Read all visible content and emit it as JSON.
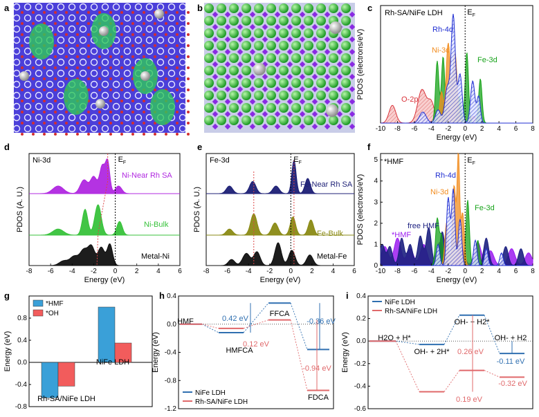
{
  "colors": {
    "rh4d": "#1f2ed1",
    "ni3d": "#f28c1e",
    "fe3d": "#17a31a",
    "o2p": "#d9333a",
    "hmf_purple": "#9b1cf0",
    "ni_near": "#b028e0",
    "ni_bulk": "#38c23b",
    "metal": "#111111",
    "fe_near": "#1c1f75",
    "fe_bulk": "#8a8a14",
    "blue_path": "#2f6fb0",
    "red_path": "#e0686a",
    "bar_blue": "#3aa0d8",
    "bar_red": "#f25c5c"
  },
  "panels": {
    "a": {
      "label": "a"
    },
    "b": {
      "label": "b"
    },
    "c": {
      "label": "c",
      "title": "Rh-SA/NiFe LDH",
      "ef": "E",
      "ef_sub": "F",
      "labels": {
        "rh4d": "Rh-4d",
        "ni3d": "Ni-3d",
        "fe3d": "Fe-3d",
        "o2p": "O-2p"
      },
      "ylabel": "PDOS (electrons/eV)",
      "xlabel": "Energy (eV)"
    },
    "d": {
      "label": "d",
      "title": "Ni-3d",
      "ef": "E",
      "ef_sub": "F",
      "labels": {
        "near": "Ni-Near Rh SA",
        "bulk": "Ni-Bulk",
        "metal": "Metal-Ni"
      },
      "ylabel": "PDOS (A. U.)",
      "xlabel": "Energy (eV)"
    },
    "e": {
      "label": "e",
      "title": "Fe-3d",
      "ef": "E",
      "ef_sub": "F",
      "labels": {
        "near": "Fe-Near Rh SA",
        "bulk": "Fe-Bulk",
        "metal": "Metal-Fe"
      },
      "ylabel": "PDOS (A. U.)",
      "xlabel": "Energy (eV)"
    },
    "f": {
      "label": "f",
      "title": "*HMF",
      "ef": "E",
      "ef_sub": "F",
      "labels": {
        "rh4d": "Rh-4d",
        "ni3d": "Ni-3d",
        "fe3d": "Fe-3d",
        "free": "free HMF",
        "hmf": "*HMF"
      },
      "ylabel": "PDOS (electrons/eV)",
      "xlabel": "Energy (eV)"
    },
    "g": {
      "label": "g"
    },
    "h": {
      "label": "h"
    },
    "i": {
      "label": "i"
    }
  },
  "chart_data": [
    {
      "panel": "c",
      "type": "area",
      "xlim": [
        -10,
        8
      ],
      "ylim": [
        0,
        5.3
      ],
      "xticks": [
        "-10",
        "-8",
        "-6",
        "-4",
        "-2",
        "0",
        "2",
        "4",
        "6",
        "8"
      ],
      "series": [
        {
          "name": "Rh-4d",
          "peaks": [
            [
              -2.1,
              1.6,
              0.3
            ],
            [
              -1.4,
              4.8,
              0.25
            ],
            [
              -0.6,
              2.2,
              0.25
            ],
            [
              0.9,
              1.9,
              0.25
            ],
            [
              1.6,
              1.2,
              0.2
            ],
            [
              -3.2,
              0.6,
              0.3
            ],
            [
              -5,
              0.5,
              0.4
            ]
          ]
        },
        {
          "name": "Ni-3d",
          "peaks": [
            [
              -2.0,
              3.6,
              0.25
            ],
            [
              -1.2,
              3.2,
              0.25
            ],
            [
              -2.8,
              1.4,
              0.2
            ]
          ]
        },
        {
          "name": "Fe-3d",
          "peaks": [
            [
              -3.3,
              2.8,
              0.2
            ],
            [
              -2.6,
              3.0,
              0.2
            ],
            [
              0.2,
              3.2,
              0.2
            ],
            [
              1.8,
              2.0,
              0.2
            ],
            [
              -0.7,
              1.2,
              0.2
            ]
          ]
        },
        {
          "name": "O-2p",
          "peaks": [
            [
              -8.6,
              0.8,
              0.4
            ],
            [
              -5.1,
              1.5,
              0.5
            ],
            [
              -4,
              0.9,
              0.4
            ],
            [
              -2.3,
              1.2,
              0.3
            ],
            [
              -1,
              1.0,
              0.4
            ],
            [
              1,
              0.3,
              0.3
            ]
          ]
        }
      ]
    },
    {
      "panel": "d",
      "type": "area",
      "xlim": [
        -8,
        6
      ],
      "xticks": [
        "-8",
        "-6",
        "-4",
        "-2",
        "0",
        "2",
        "4",
        "6"
      ],
      "series": [
        {
          "name": "Ni-Near Rh SA",
          "peaks": [
            [
              -5.3,
              0.25,
              0.5
            ],
            [
              -2.9,
              0.45,
              0.35
            ],
            [
              -2.0,
              0.55,
              0.3
            ],
            [
              -1.2,
              0.9,
              0.25
            ],
            [
              -0.7,
              1.0,
              0.2
            ],
            [
              0.3,
              0.25,
              0.3
            ]
          ]
        },
        {
          "name": "Ni-Bulk",
          "peaks": [
            [
              -5.3,
              0.2,
              0.5
            ],
            [
              -2.8,
              0.85,
              0.25
            ],
            [
              -1.6,
              1.0,
              0.3
            ],
            [
              0.4,
              0.45,
              0.25
            ]
          ]
        },
        {
          "name": "Metal-Ni",
          "peaks": [
            [
              -4.8,
              0.15,
              0.4
            ],
            [
              -3.8,
              0.3,
              0.4
            ],
            [
              -2.9,
              0.5,
              0.35
            ],
            [
              -2.2,
              0.6,
              0.3
            ],
            [
              -1.3,
              0.6,
              0.3
            ],
            [
              -0.5,
              0.7,
              0.25
            ]
          ]
        }
      ]
    },
    {
      "panel": "e",
      "type": "area",
      "xlim": [
        -8,
        6
      ],
      "xticks": [
        "-8",
        "-6",
        "-4",
        "-2",
        "0",
        "2",
        "4",
        "6"
      ],
      "series": [
        {
          "name": "Fe-Near Rh SA",
          "peaks": [
            [
              -5.8,
              0.25,
              0.3
            ],
            [
              -3.6,
              0.4,
              0.3
            ],
            [
              -1.4,
              0.25,
              0.3
            ],
            [
              0.3,
              1.1,
              0.2
            ],
            [
              1.6,
              0.5,
              0.25
            ]
          ]
        },
        {
          "name": "Fe-Bulk",
          "peaks": [
            [
              -5.8,
              0.2,
              0.3
            ],
            [
              -3.5,
              0.7,
              0.3
            ],
            [
              -1.5,
              0.4,
              0.3
            ],
            [
              0.2,
              0.6,
              0.25
            ],
            [
              1.9,
              0.5,
              0.25
            ]
          ]
        },
        {
          "name": "Metal-Fe",
          "peaks": [
            [
              -5.6,
              0.2,
              0.3
            ],
            [
              -4.2,
              0.4,
              0.35
            ],
            [
              -3.2,
              0.45,
              0.3
            ],
            [
              -1.2,
              0.75,
              0.3
            ],
            [
              0.1,
              0.5,
              0.3
            ],
            [
              1.8,
              0.35,
              0.3
            ]
          ]
        }
      ]
    },
    {
      "panel": "f",
      "type": "area",
      "xlim": [
        -10,
        8
      ],
      "ylim": [
        0,
        5.3
      ],
      "xticks": [
        "-10",
        "-8",
        "-6",
        "-4",
        "-2",
        "0",
        "2",
        "4",
        "6",
        "8"
      ],
      "yticks": [
        "0",
        "1",
        "2",
        "3",
        "4",
        "5"
      ],
      "series": [
        {
          "name": "Rh-4d",
          "peaks": [
            [
              -2.0,
              3.2,
              0.2
            ],
            [
              -1.4,
              3.6,
              0.2
            ],
            [
              -0.6,
              2.2,
              0.2
            ],
            [
              -3.2,
              1.0,
              0.2
            ],
            [
              1.2,
              1.2,
              0.2
            ],
            [
              2.5,
              0.8,
              0.2
            ],
            [
              4.3,
              0.6,
              0.2
            ]
          ]
        },
        {
          "name": "Ni-3d",
          "peaks": [
            [
              -0.8,
              5.2,
              0.15
            ],
            [
              -1.3,
              3.8,
              0.2
            ],
            [
              -2.2,
              2.0,
              0.2
            ],
            [
              -0.3,
              2.5,
              0.2
            ]
          ]
        },
        {
          "name": "Fe-3d",
          "peaks": [
            [
              -3.3,
              2.2,
              0.2
            ],
            [
              0.3,
              3.1,
              0.2
            ],
            [
              -2.8,
              1.4,
              0.2
            ],
            [
              1.5,
              1.2,
              0.2
            ]
          ]
        },
        {
          "name": "free HMF",
          "peaks": [
            [
              -9.8,
              1.0,
              0.3
            ],
            [
              -8.9,
              0.9,
              0.3
            ],
            [
              -7.5,
              1.3,
              0.3
            ],
            [
              -6.5,
              1.0,
              0.3
            ],
            [
              -5.3,
              1.4,
              0.3
            ],
            [
              -4.3,
              1.8,
              0.3
            ],
            [
              -2.7,
              1.6,
              0.3
            ],
            [
              2.5,
              1.3,
              0.3
            ],
            [
              4.8,
              0.9,
              0.3
            ],
            [
              6.6,
              0.8,
              0.3
            ]
          ]
        },
        {
          "name": "*HMF",
          "peaks": [
            [
              -9.5,
              0.9,
              0.4
            ],
            [
              -8,
              1.3,
              0.4
            ],
            [
              -6.5,
              0.8,
              0.4
            ],
            [
              -4.9,
              1.0,
              0.4
            ],
            [
              -3,
              1.1,
              0.4
            ],
            [
              -0.5,
              0.9,
              0.4
            ],
            [
              1.5,
              1.1,
              0.4
            ],
            [
              3,
              0.7,
              0.4
            ],
            [
              5.5,
              0.8,
              0.4
            ],
            [
              7.5,
              0.6,
              0.4
            ]
          ]
        }
      ]
    },
    {
      "panel": "g",
      "type": "bar",
      "ylabel": "Energy (eV)",
      "ylim": [
        -0.8,
        1.2
      ],
      "yticks": [
        "-0.8",
        "-0.4",
        "0.0",
        "0.4",
        "0.8"
      ],
      "categories": [
        "Rh-SA/NiFe LDH",
        "NiFe LDH"
      ],
      "series": [
        {
          "name": "*HMF",
          "values": [
            -0.64,
            1.0
          ]
        },
        {
          "name": "*OH",
          "values": [
            -0.43,
            0.35
          ]
        }
      ]
    },
    {
      "panel": "h",
      "type": "line",
      "ylabel": "Energy (eV)",
      "ylim": [
        -1.2,
        0.4
      ],
      "yticks": [
        "0.4",
        "0.0",
        "-0.4",
        "-0.8",
        "-1.2"
      ],
      "steps": [
        "HMF",
        "HMFCA",
        "FFCA",
        "FDCA"
      ],
      "series": [
        {
          "name": "NiFe LDH",
          "values": [
            0,
            -0.12,
            0.3,
            -0.36
          ]
        },
        {
          "name": "Rh-SA/NiFe LDH",
          "values": [
            0,
            -0.06,
            0.06,
            -0.94
          ]
        }
      ],
      "annotations": [
        "0.42 eV",
        "-0.36 eV",
        "0.12 eV",
        "-0.94 eV"
      ]
    },
    {
      "panel": "i",
      "type": "line",
      "ylabel": "Energy (eV)",
      "ylim": [
        -0.6,
        0.4
      ],
      "yticks": [
        "0.4",
        "0.2",
        "0.0",
        "-0.2",
        "-0.4",
        "-0.6"
      ],
      "steps": [
        "H2O + H*",
        "OH- + 2H*",
        "OH- + H2*",
        "OH- + H2"
      ],
      "series": [
        {
          "name": "NiFe LDH",
          "values": [
            0,
            -0.03,
            0.23,
            -0.11
          ]
        },
        {
          "name": "Rh-SA/NiFe LDH",
          "values": [
            0,
            -0.45,
            -0.26,
            -0.32
          ]
        }
      ],
      "annotations": [
        "0.26 eV",
        "-0.11 eV",
        "-0.32 eV",
        "0.19 eV"
      ]
    }
  ]
}
